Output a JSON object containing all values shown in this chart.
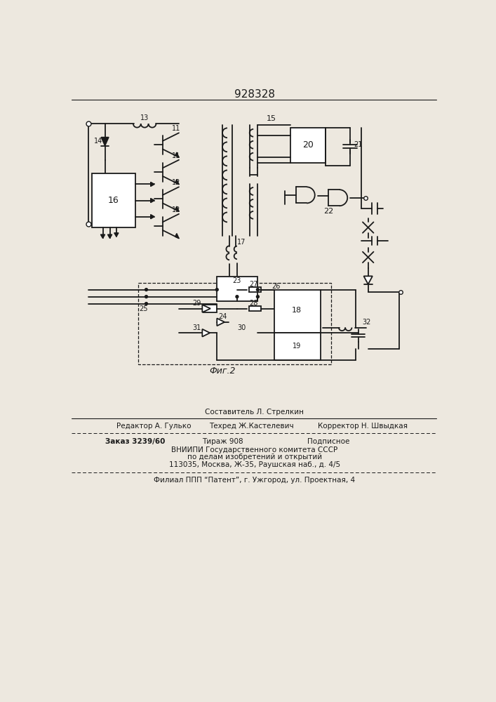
{
  "patent_number": "928328",
  "fig_label": "Фиг.2",
  "page_width": 7.07,
  "page_height": 10.0,
  "bg_color": "#ede8df",
  "line_color": "#1a1a1a",
  "footer": {
    "composer_label": "Составитель Л. Стрелкин",
    "editor_label": "Редактор А. Гулько",
    "techred_label": "Техред Ж.Кастелевич",
    "corrector_label": "Корректор Н. Швыдкая",
    "order_label": "Заказ 3239/60",
    "tirazh_label": "Тираж 908",
    "podpisnoe_label": "Подписное",
    "vnipi_line1": "ВНИИПИ Государственного комитета СССР",
    "vnipi_line2": "по делам изобретений и открытий",
    "vnipi_line3": "113035, Москва, Ж-35, Раушская наб., д. 4/5",
    "filial_line": "Филиал ППП “Патент”, г. Ужгород, ул. Проектная, 4"
  }
}
